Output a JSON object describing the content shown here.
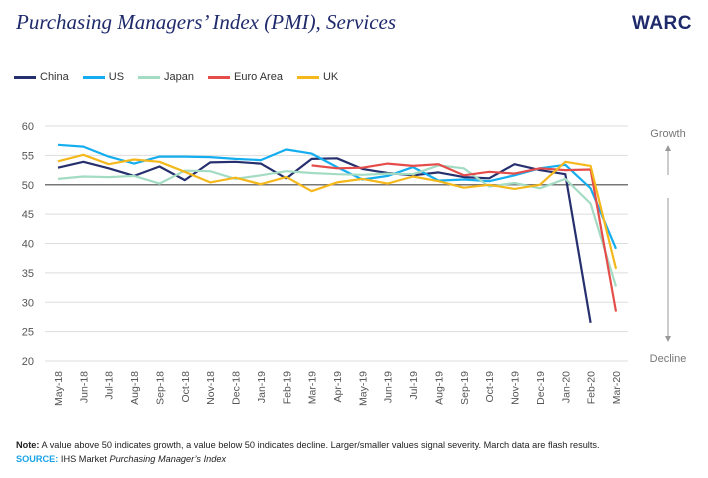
{
  "header": {
    "title": "Purchasing Managers’ Index (PMI), Services",
    "logo": "WARC"
  },
  "annotations": {
    "growth": "Growth",
    "decline": "Decline"
  },
  "footer": {
    "note_label": "Note:",
    "note_text": " A value above 50 indicates growth, a value below 50 indicates decline. Larger/smaller values signal severity. March data are flash results.",
    "source_label": "SOURCE:",
    "source_text": " IHS Market ",
    "source_italic": "Purchasing Manager’s Index"
  },
  "chart_data": {
    "type": "line",
    "title": "Purchasing Managers’ Index (PMI), Services",
    "categories": [
      "May-18",
      "Jun-18",
      "Jul-18",
      "Aug-18",
      "Sep-18",
      "Oct-18",
      "Nov-18",
      "Dec-18",
      "Jan-19",
      "Feb-19",
      "Mar-19",
      "Apr-19",
      "May-19",
      "Jun-19",
      "Jul-19",
      "Aug-19",
      "Sep-19",
      "Oct-19",
      "Nov-19",
      "Dec-19",
      "Jan-20",
      "Feb-20",
      "Mar-20"
    ],
    "ylim": [
      20,
      60
    ],
    "yticks": [
      20,
      25,
      30,
      35,
      40,
      45,
      50,
      55,
      60
    ],
    "reference_line": 50,
    "grid": true,
    "legend": "top-left",
    "series": [
      {
        "name": "China",
        "color": "#27306e",
        "values": [
          52.9,
          53.9,
          52.8,
          51.5,
          53.1,
          50.8,
          53.8,
          53.9,
          53.6,
          51.1,
          54.4,
          54.5,
          52.7,
          52.0,
          51.6,
          52.1,
          51.3,
          51.1,
          53.5,
          52.5,
          51.8,
          26.5,
          null
        ]
      },
      {
        "name": "US",
        "color": "#14aef0",
        "values": [
          56.8,
          56.5,
          54.8,
          53.6,
          54.8,
          54.8,
          54.7,
          54.4,
          54.2,
          56.0,
          55.3,
          53.0,
          50.9,
          51.5,
          53.0,
          50.7,
          50.9,
          50.6,
          51.6,
          52.8,
          53.4,
          49.4,
          39.1
        ]
      },
      {
        "name": "Japan",
        "color": "#a3dbc3",
        "values": [
          51.0,
          51.4,
          51.3,
          51.5,
          50.2,
          52.4,
          52.3,
          51.0,
          51.6,
          52.3,
          52.0,
          51.8,
          51.7,
          51.9,
          51.8,
          53.3,
          52.8,
          49.7,
          50.3,
          49.4,
          51.0,
          46.8,
          32.7
        ]
      },
      {
        "name": "Euro Area",
        "color": "#e54d4b",
        "values": [
          null,
          null,
          null,
          null,
          null,
          null,
          null,
          null,
          null,
          null,
          53.3,
          52.8,
          52.9,
          53.6,
          53.2,
          53.5,
          51.6,
          52.2,
          51.9,
          52.8,
          52.5,
          52.6,
          28.4
        ]
      },
      {
        "name": "UK",
        "color": "#f5b81c",
        "values": [
          54.0,
          55.1,
          53.5,
          54.3,
          53.9,
          52.2,
          50.4,
          51.2,
          50.1,
          51.3,
          48.9,
          50.4,
          51.0,
          50.2,
          51.4,
          50.6,
          49.5,
          50.0,
          49.3,
          50.0,
          53.9,
          53.2,
          35.7
        ]
      }
    ]
  }
}
